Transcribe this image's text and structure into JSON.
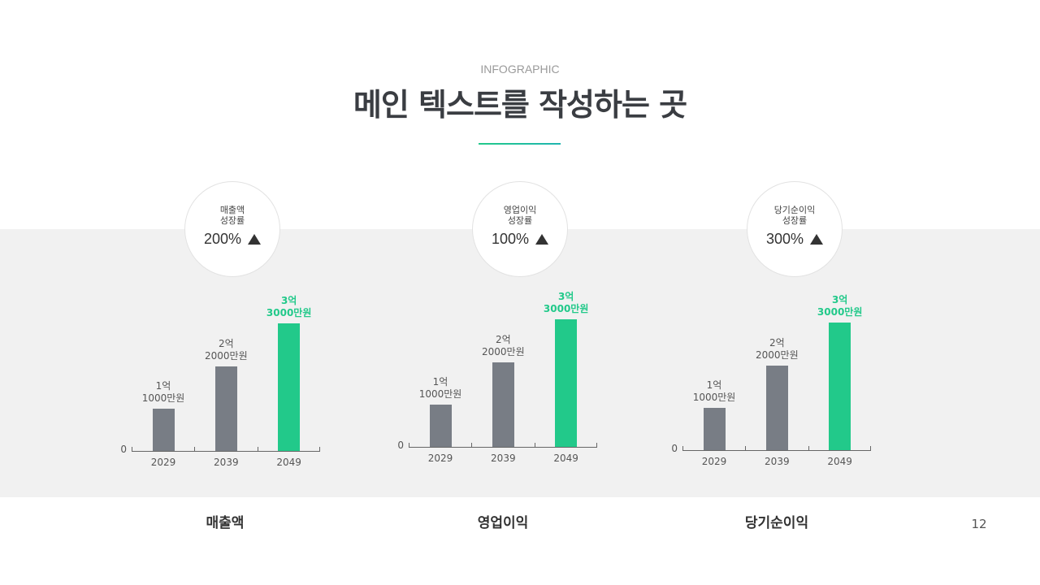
{
  "header": {
    "subtitle": "INFOGRAPHIC",
    "title": "메인 텍스트를 작성하는 곳"
  },
  "page_number": "12",
  "chart_data": [
    {
      "type": "bar",
      "title": "매출액",
      "growth_label": "매출액\n성장률",
      "growth": "200%",
      "categories": [
        "2029",
        "2039",
        "2049"
      ],
      "values": [
        110000000,
        220000000,
        330000000
      ],
      "value_labels": [
        "1억\n1000만원",
        "2억\n2000만원",
        "3억\n3000만원"
      ],
      "colors": [
        "#787d85",
        "#787d85",
        "#22c98a"
      ],
      "highlight": [
        false,
        false,
        true
      ],
      "ylim": [
        0,
        400000000
      ],
      "yticks": [
        0
      ]
    },
    {
      "type": "bar",
      "title": "영업이익",
      "growth_label": "영업이익\n성장률",
      "growth": "100%",
      "categories": [
        "2029",
        "2039",
        "2049"
      ],
      "values": [
        110000000,
        220000000,
        330000000
      ],
      "value_labels": [
        "1억\n1000만원",
        "2억\n2000만원",
        "3억\n3000만원"
      ],
      "colors": [
        "#787d85",
        "#787d85",
        "#22c98a"
      ],
      "highlight": [
        false,
        false,
        true
      ],
      "ylim": [
        0,
        400000000
      ],
      "yticks": [
        0
      ]
    },
    {
      "type": "bar",
      "title": "당기순이익",
      "growth_label": "당기순이익\n성장률",
      "growth": "300%",
      "categories": [
        "2029",
        "2039",
        "2049"
      ],
      "values": [
        110000000,
        220000000,
        330000000
      ],
      "value_labels": [
        "1억\n1000만원",
        "2억\n2000만원",
        "3억\n3000만원"
      ],
      "colors": [
        "#787d85",
        "#787d85",
        "#22c98a"
      ],
      "highlight": [
        false,
        false,
        true
      ],
      "ylim": [
        0,
        400000000
      ],
      "yticks": [
        0
      ]
    }
  ]
}
